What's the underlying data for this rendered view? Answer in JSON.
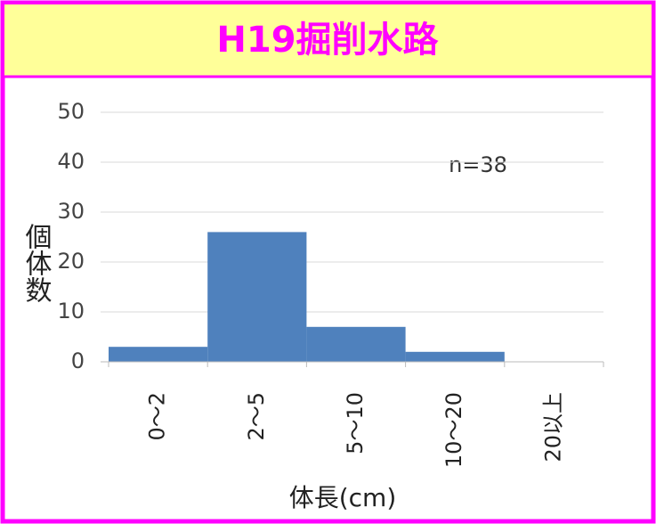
{
  "chart_data": {
    "type": "bar",
    "title": "H19掘削水路",
    "categories": [
      "0～2",
      "2～5",
      "5～10",
      "10～20",
      "20以上"
    ],
    "values": [
      3,
      26,
      7,
      2,
      0
    ],
    "color": "#4f81bd",
    "ylim": [
      0,
      50
    ],
    "yticks": [
      0,
      10,
      20,
      30,
      40,
      50
    ],
    "grid": true,
    "ylabel": "個体数",
    "xlabel": "体長(cm)",
    "annotation": "n=38"
  }
}
